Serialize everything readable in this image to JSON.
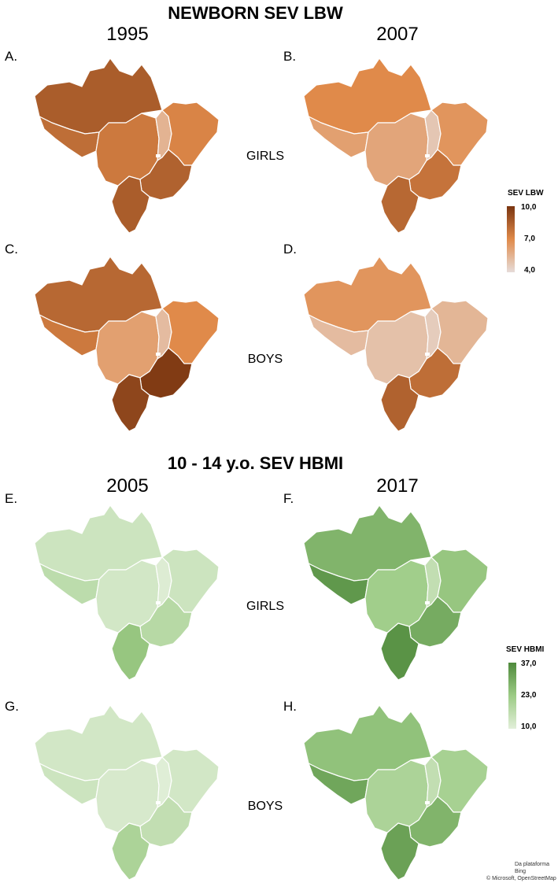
{
  "sections": [
    {
      "title": "NEWBORN SEV LBW",
      "years": [
        "1995",
        "2007"
      ],
      "rows": [
        "GIRLS",
        "BOYS"
      ],
      "legend": {
        "title": "SEV LBW",
        "max": "10,0",
        "mid": "7,0",
        "min": "4,0",
        "color_low": "#e6dcd9",
        "color_mid": "#e08a4a",
        "color_high": "#7a3510"
      }
    },
    {
      "title": "10 - 14 y.o. SEV HBMI",
      "years": [
        "2005",
        "2017"
      ],
      "rows": [
        "GIRLS",
        "BOYS"
      ],
      "legend": {
        "title": "SEV HBMI",
        "max": "37,0",
        "mid": "23,0",
        "min": "10,0",
        "color_low": "#e2efd9",
        "color_mid": "#9ccb85",
        "color_high": "#4f8a3c"
      }
    }
  ],
  "panels": [
    {
      "letter": "A.",
      "section": 0,
      "col": 0,
      "row": 0,
      "regions": {
        "north": 8.6,
        "west": 8.0,
        "center": 7.6,
        "tocantins": 5.5,
        "northeast": 7.2,
        "southeast": 8.4,
        "south": 8.6
      }
    },
    {
      "letter": "B.",
      "section": 0,
      "col": 1,
      "row": 0,
      "regions": {
        "north": 7.0,
        "west": 6.2,
        "center": 6.0,
        "tocantins": 4.8,
        "northeast": 6.6,
        "southeast": 7.8,
        "south": 8.2
      }
    },
    {
      "letter": "C.",
      "section": 0,
      "col": 0,
      "row": 1,
      "regions": {
        "north": 8.2,
        "west": 7.6,
        "center": 6.2,
        "tocantins": 5.2,
        "northeast": 7.0,
        "southeast": 9.8,
        "south": 9.4
      }
    },
    {
      "letter": "D.",
      "section": 0,
      "col": 1,
      "row": 1,
      "regions": {
        "north": 6.6,
        "west": 5.2,
        "center": 5.0,
        "tocantins": 4.6,
        "northeast": 5.4,
        "southeast": 8.0,
        "south": 8.4
      }
    },
    {
      "letter": "E.",
      "section": 1,
      "col": 0,
      "row": 0,
      "regions": {
        "north": 14.0,
        "west": 17.0,
        "center": 13.0,
        "tocantins": 11.0,
        "northeast": 14.0,
        "southeast": 18.0,
        "south": 24.0
      }
    },
    {
      "letter": "F.",
      "section": 1,
      "col": 1,
      "row": 0,
      "regions": {
        "north": 28.0,
        "west": 34.0,
        "center": 22.0,
        "tocantins": 16.0,
        "northeast": 24.0,
        "southeast": 30.0,
        "south": 35.0
      }
    },
    {
      "letter": "G.",
      "section": 1,
      "col": 0,
      "row": 1,
      "regions": {
        "north": 13.0,
        "west": 14.0,
        "center": 12.0,
        "tocantins": 10.5,
        "northeast": 13.0,
        "southeast": 16.0,
        "south": 20.0
      }
    },
    {
      "letter": "H.",
      "section": 1,
      "col": 1,
      "row": 1,
      "regions": {
        "north": 25.0,
        "west": 31.0,
        "center": 20.0,
        "tocantins": 16.0,
        "northeast": 21.0,
        "southeast": 28.0,
        "south": 32.0
      }
    }
  ],
  "attribution": {
    "line1": "Da plataforma Bing",
    "line2": "© Microsoft, OpenStreetMap"
  }
}
